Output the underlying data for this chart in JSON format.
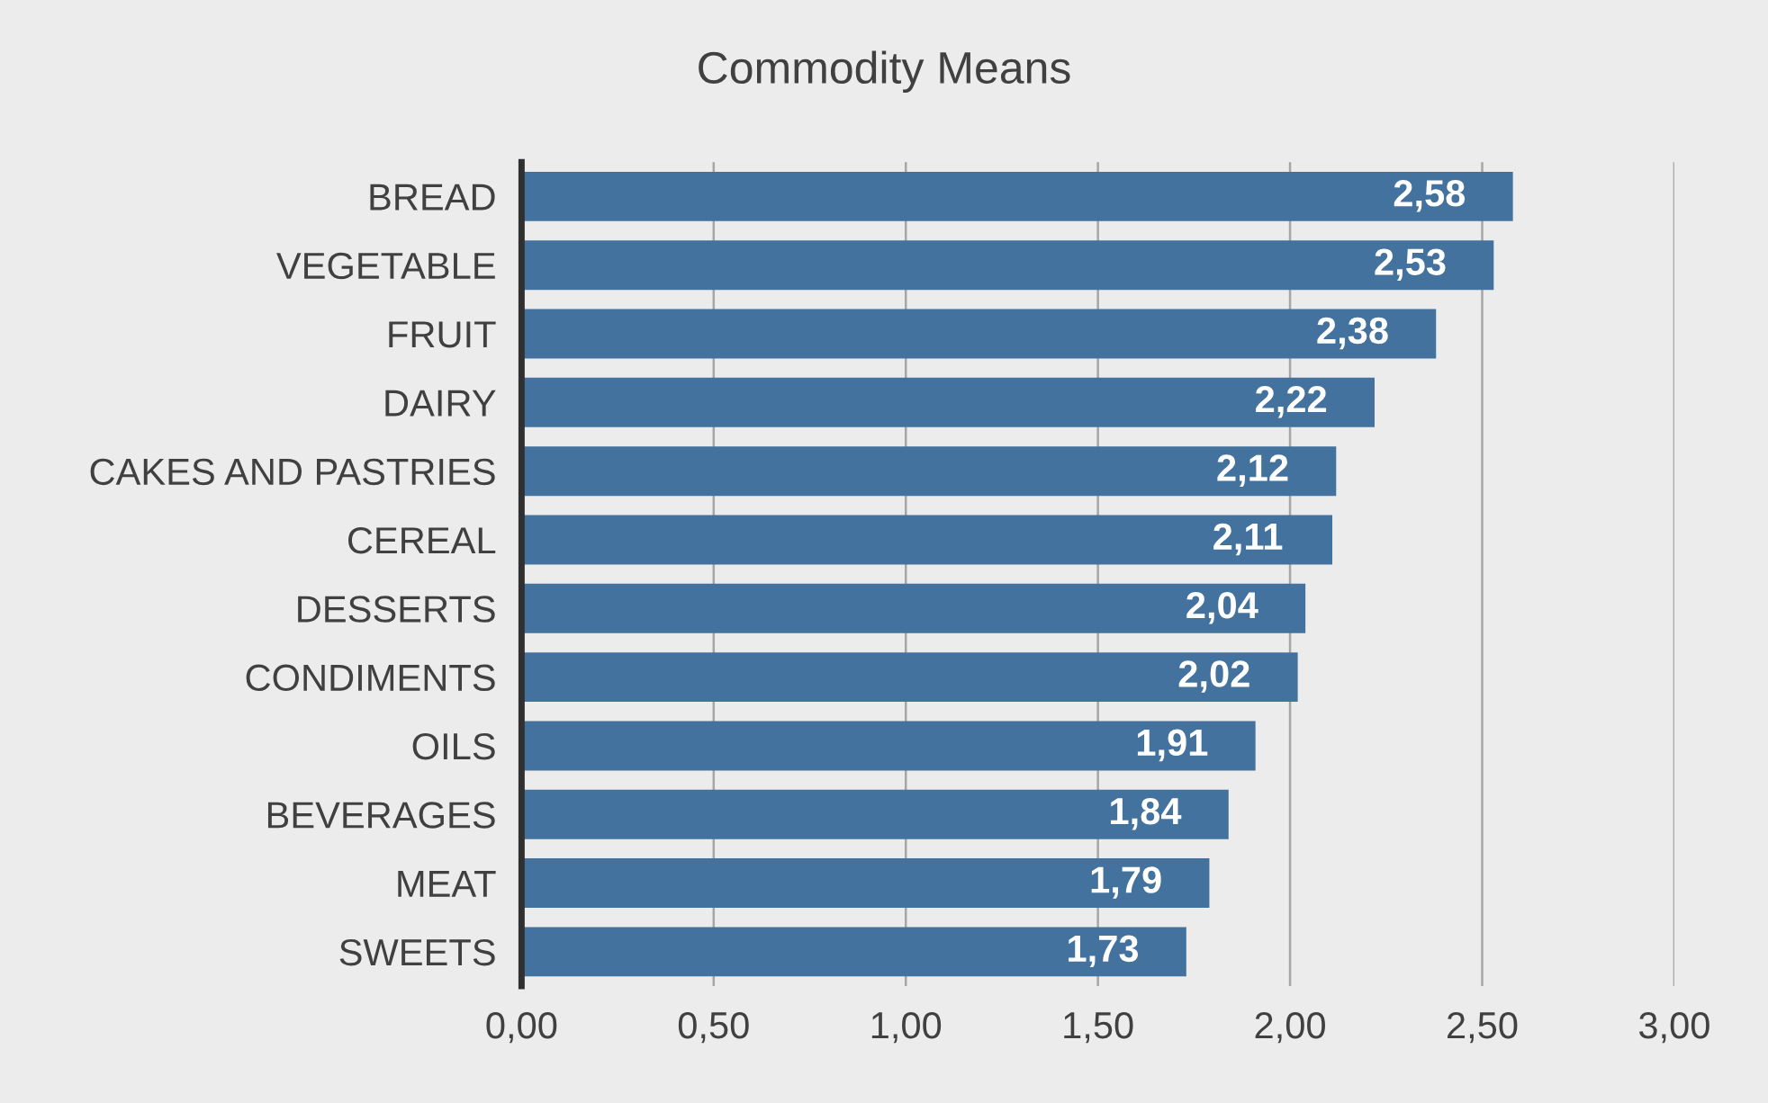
{
  "chart_data": {
    "type": "bar",
    "orientation": "horizontal",
    "title": "Commodity Means",
    "categories": [
      "BREAD",
      "VEGETABLE",
      "FRUIT",
      "DAIRY",
      "CAKES AND PASTRIES",
      "CEREAL",
      "DESSERTS",
      "CONDIMENTS",
      "OILS",
      "BEVERAGES",
      "MEAT",
      "SWEETS"
    ],
    "values": [
      2.58,
      2.53,
      2.38,
      2.22,
      2.12,
      2.11,
      2.04,
      2.02,
      1.91,
      1.84,
      1.79,
      1.73
    ],
    "value_labels": [
      "2,58",
      "2,53",
      "2,38",
      "2,22",
      "2,12",
      "2,11",
      "2,04",
      "2,02",
      "1,91",
      "1,84",
      "1,79",
      "1,73"
    ],
    "color": "#44729e",
    "xlim": [
      0,
      3
    ],
    "xticks": [
      {
        "value": 0,
        "label": "0,00"
      },
      {
        "value": 0.5,
        "label": "0,50"
      },
      {
        "value": 1,
        "label": "1,00"
      },
      {
        "value": 1.5,
        "label": "1,50"
      },
      {
        "value": 2,
        "label": "2,00"
      },
      {
        "value": 2.5,
        "label": "2,50"
      },
      {
        "value": 3,
        "label": "3,00"
      }
    ],
    "grid": "x",
    "legend": false
  }
}
